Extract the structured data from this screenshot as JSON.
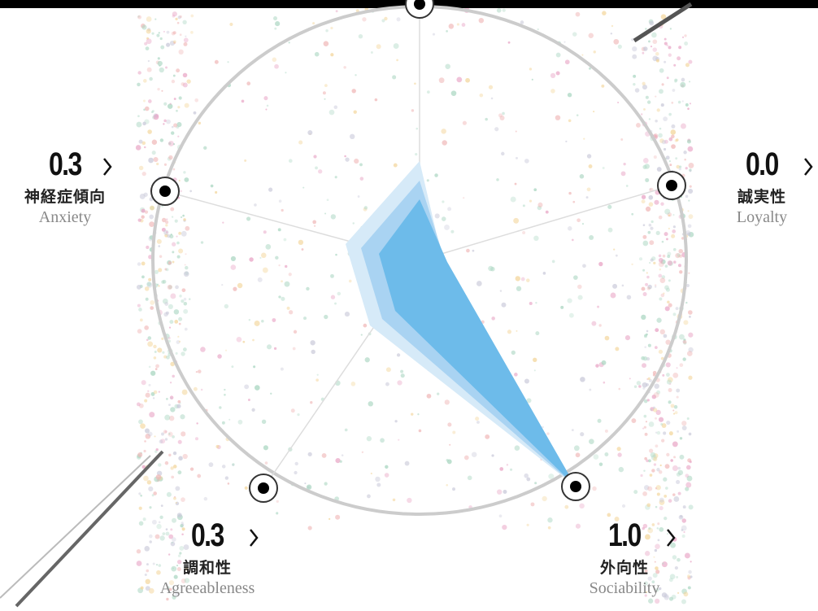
{
  "traits": [
    {
      "value": "0.3",
      "name_ja": "神経症傾向",
      "name_en": "Anxiety"
    },
    {
      "value": "0.0",
      "name_ja": "誠実性",
      "name_en": "Loyalty"
    },
    {
      "value": "0.3",
      "name_ja": "調和性",
      "name_en": "Agreeableness"
    },
    {
      "value": "1.0",
      "name_ja": "外向性",
      "name_en": "Sociability"
    }
  ]
}
